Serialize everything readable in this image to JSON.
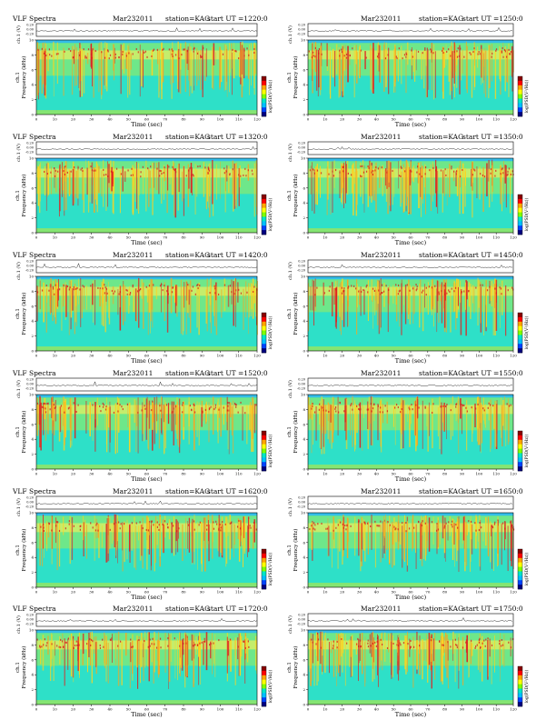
{
  "page_title": "VLF Spectra",
  "date": "Mar232011",
  "station": "station=KAG",
  "panels": [
    {
      "title": "VLF Spectra",
      "date": "Mar232011",
      "station": "station=KAG",
      "start": "start  UT  =1220:0"
    },
    {
      "title": "",
      "date": "Mar232011",
      "station": "station=KAG",
      "start": "start  UT  =1250:0"
    },
    {
      "title": "VLF Spectra",
      "date": "Mar232011",
      "station": "station=KAG",
      "start": "start  UT  =1320:0"
    },
    {
      "title": "",
      "date": "Mar232011",
      "station": "station=KAG",
      "start": "start  UT  =1350:0"
    },
    {
      "title": "VLF Spectra",
      "date": "Mar232011",
      "station": "station=KAG",
      "start": "start  UT  =1420:0"
    },
    {
      "title": "",
      "date": "Mar232011",
      "station": "station=KAG",
      "start": "start  UT  =1450:0"
    },
    {
      "title": "VLF Spectra",
      "date": "Mar232011",
      "station": "station=KAG",
      "start": "start  UT  =1520:0"
    },
    {
      "title": "",
      "date": "Mar232011",
      "station": "station=KAG",
      "start": "start  UT  =1550:0"
    },
    {
      "title": "VLF Spectra",
      "date": "Mar232011",
      "station": "station=KAG",
      "start": "start  UT  =1620:0"
    },
    {
      "title": "",
      "date": "Mar232011",
      "station": "station=KAG",
      "start": "start  UT  =1650:0"
    },
    {
      "title": "VLF Spectra",
      "date": "Mar232011",
      "station": "station=KAG",
      "start": "start  UT  =1720:0"
    },
    {
      "title": "",
      "date": "Mar232011",
      "station": "station=KAG",
      "start": "start  UT  =1750:0"
    }
  ],
  "labels": {
    "xlabel": "Time (sec)",
    "wave_ylabel": "ch.1 (V)",
    "spec_ylabel": "Frequency (kHz)",
    "spec_ylabel_ch": "ch.1",
    "cbar_label": "log(PSD(V²/Hz))"
  },
  "chart_data": {
    "type": "heatmap",
    "x": {
      "label": "Time (sec)",
      "range": [
        0,
        120
      ],
      "ticks": [
        0,
        10,
        20,
        30,
        40,
        50,
        60,
        70,
        80,
        90,
        100,
        110,
        120
      ]
    },
    "y": {
      "label": "Frequency (kHz)",
      "range": [
        0,
        10
      ],
      "ticks": [
        0,
        2,
        4,
        6,
        8,
        10
      ]
    },
    "waveform": {
      "label": "ch.1 (V)",
      "ticks": [
        "0.20",
        "0.00",
        "-0.20"
      ]
    },
    "colorbar": {
      "label": "log(PSD(V²/Hz))",
      "colors": [
        "#8b0000",
        "#ff0000",
        "#ffa500",
        "#ffff00",
        "#7fff00",
        "#00e5c8",
        "#00bfff",
        "#0044ff",
        "#000080"
      ]
    }
  }
}
